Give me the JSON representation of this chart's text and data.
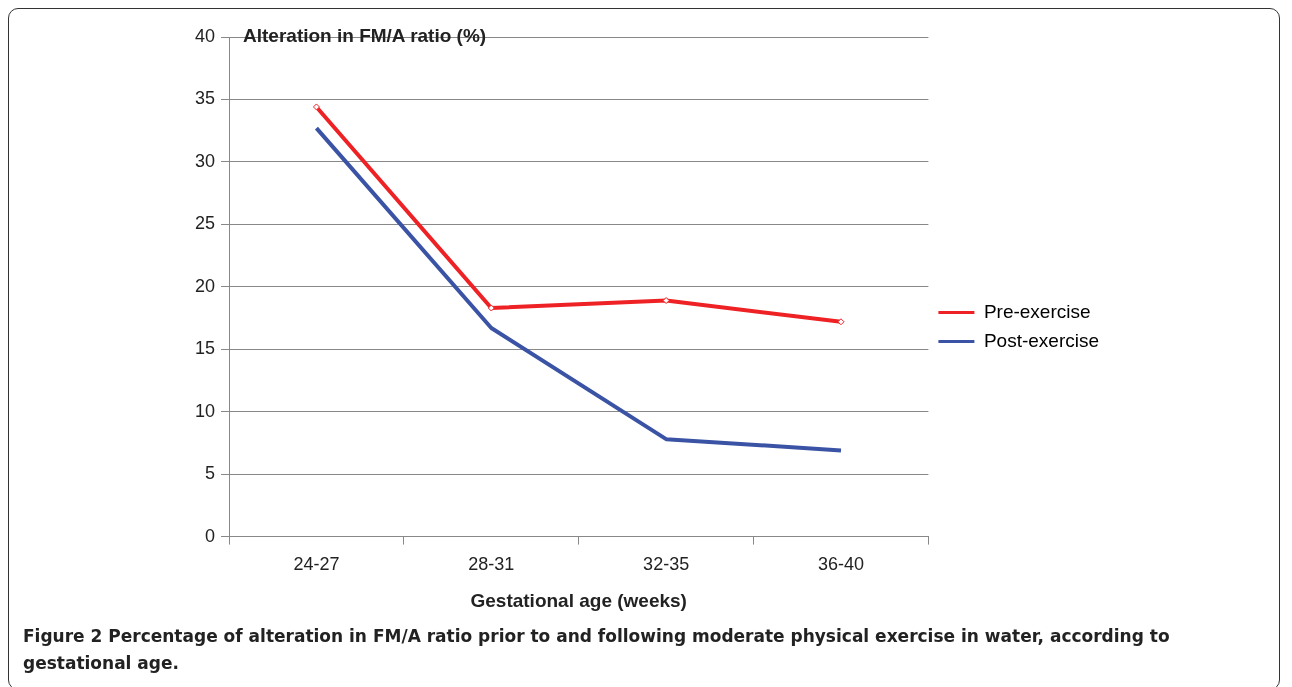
{
  "chart_data": {
    "type": "line",
    "ylabel": "Alteration in FM/A ratio (%)",
    "xlabel": "Gestational age (weeks)",
    "categories": [
      "24-27",
      "28-31",
      "32-35",
      "36-40"
    ],
    "series": [
      {
        "name": "Pre-exercise",
        "color": "#ee2224",
        "values": [
          34.4,
          18.3,
          18.9,
          17.2
        ],
        "marker": "diamond"
      },
      {
        "name": "Post-exercise",
        "color": "#3a53a4",
        "values": [
          32.7,
          16.7,
          7.8,
          6.9
        ],
        "marker": "none"
      }
    ],
    "ylim": [
      0,
      40
    ],
    "yticks": [
      0,
      5,
      10,
      15,
      20,
      25,
      30,
      35,
      40
    ],
    "grid": "y",
    "legend": "right",
    "line_style": "solid",
    "annotations": [
      "Figure 2 Percentage of alteration in FM/A ratio prior to and following moderate physical exercise in water, according to gestational age."
    ]
  }
}
